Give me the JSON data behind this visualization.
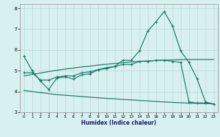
{
  "xlabel": "Humidex (Indice chaleur)",
  "bg_color": "#d8f0f0",
  "grid_color": "#b8dcd8",
  "line_color": "#1a7a6a",
  "xlim": [
    -0.5,
    23.5
  ],
  "ylim": [
    3.0,
    8.2
  ],
  "yticks": [
    3,
    4,
    5,
    6,
    7,
    8
  ],
  "xticks": [
    0,
    1,
    2,
    3,
    4,
    5,
    6,
    7,
    8,
    9,
    10,
    11,
    12,
    13,
    14,
    15,
    16,
    17,
    18,
    19,
    20,
    21,
    22,
    23
  ],
  "line1_x": [
    0,
    1,
    2,
    3,
    4,
    5,
    6,
    7,
    8,
    9,
    10,
    11,
    12,
    13,
    14,
    15,
    16,
    17,
    18,
    19,
    20,
    21,
    22,
    23
  ],
  "line1_y": [
    5.7,
    5.0,
    4.5,
    4.1,
    4.65,
    4.7,
    4.6,
    4.8,
    4.85,
    5.05,
    5.1,
    5.2,
    5.5,
    5.5,
    5.95,
    6.9,
    7.35,
    7.85,
    7.15,
    5.95,
    5.4,
    4.6,
    3.5,
    3.4
  ],
  "line2_x": [
    0,
    1,
    2,
    3,
    4,
    5,
    6,
    7,
    8,
    9,
    10,
    11,
    12,
    13,
    14,
    15,
    16,
    17,
    18,
    19,
    20,
    21,
    22,
    23
  ],
  "line2_y": [
    4.9,
    4.9,
    4.55,
    4.55,
    4.7,
    4.75,
    4.75,
    4.9,
    4.95,
    5.05,
    5.15,
    5.2,
    5.3,
    5.3,
    5.45,
    5.45,
    5.5,
    5.5,
    5.45,
    5.4,
    3.5,
    3.45,
    3.45,
    3.4
  ],
  "line3_x": [
    0,
    1,
    2,
    3,
    4,
    5,
    6,
    7,
    8,
    9,
    10,
    11,
    12,
    13,
    14,
    15,
    16,
    17,
    18,
    19,
    20,
    21,
    22,
    23
  ],
  "line3_y": [
    4.75,
    4.82,
    4.89,
    4.96,
    5.02,
    5.08,
    5.13,
    5.18,
    5.22,
    5.27,
    5.31,
    5.35,
    5.38,
    5.42,
    5.45,
    5.47,
    5.49,
    5.51,
    5.52,
    5.53,
    5.54,
    5.54,
    5.54,
    5.54
  ],
  "line4_x": [
    0,
    1,
    2,
    3,
    4,
    5,
    6,
    7,
    8,
    9,
    10,
    11,
    12,
    13,
    14,
    15,
    16,
    17,
    18,
    19,
    20,
    21,
    22,
    23
  ],
  "line4_y": [
    4.05,
    4.0,
    3.95,
    3.9,
    3.85,
    3.82,
    3.79,
    3.76,
    3.73,
    3.7,
    3.67,
    3.65,
    3.62,
    3.6,
    3.57,
    3.55,
    3.52,
    3.5,
    3.48,
    3.46,
    3.44,
    3.43,
    3.42,
    3.41
  ]
}
